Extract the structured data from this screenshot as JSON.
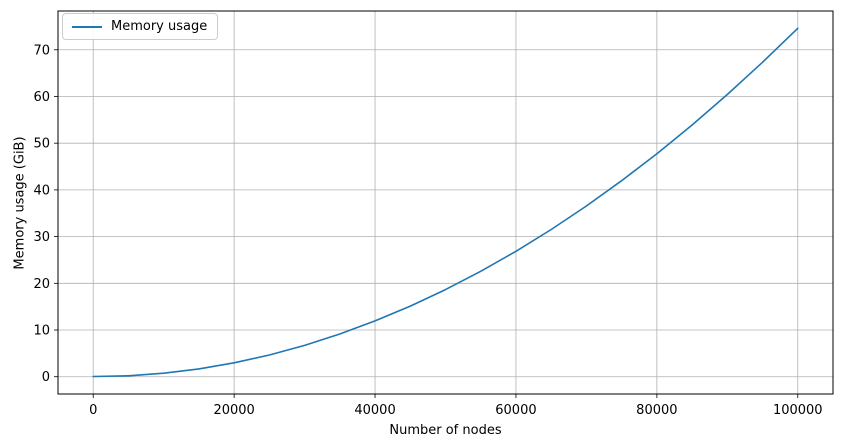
{
  "chart_data": {
    "type": "line",
    "title": "",
    "xlabel": "Number of nodes",
    "ylabel": "Memory usage (GiB)",
    "xlim": [
      -5000,
      105000
    ],
    "ylim": [
      -3.7,
      78.3
    ],
    "x_ticks": [
      0,
      20000,
      40000,
      60000,
      80000,
      100000
    ],
    "x_tick_labels": [
      "0",
      "20000",
      "40000",
      "60000",
      "80000",
      "100000"
    ],
    "y_ticks": [
      0,
      10,
      20,
      30,
      40,
      50,
      60,
      70
    ],
    "y_tick_labels": [
      "0",
      "10",
      "20",
      "30",
      "40",
      "50",
      "60",
      "70"
    ],
    "grid": true,
    "legend_position": "upper left",
    "series": [
      {
        "name": "Memory usage",
        "color": "#1f77b4",
        "x": [
          0,
          5000,
          10000,
          15000,
          20000,
          25000,
          30000,
          35000,
          40000,
          45000,
          50000,
          55000,
          60000,
          65000,
          70000,
          75000,
          80000,
          85000,
          90000,
          95000,
          100000
        ],
        "y": [
          0.05,
          0.19,
          0.75,
          1.68,
          2.98,
          4.66,
          6.71,
          9.14,
          11.94,
          15.11,
          18.65,
          22.57,
          26.86,
          31.52,
          36.55,
          41.96,
          47.74,
          53.89,
          60.43,
          67.32,
          74.6
        ]
      }
    ]
  },
  "colors": {
    "line": "#1f77b4",
    "grid": "#b0b0b0",
    "spine": "#000000",
    "background": "#ffffff",
    "legend_border": "#cccccc"
  }
}
